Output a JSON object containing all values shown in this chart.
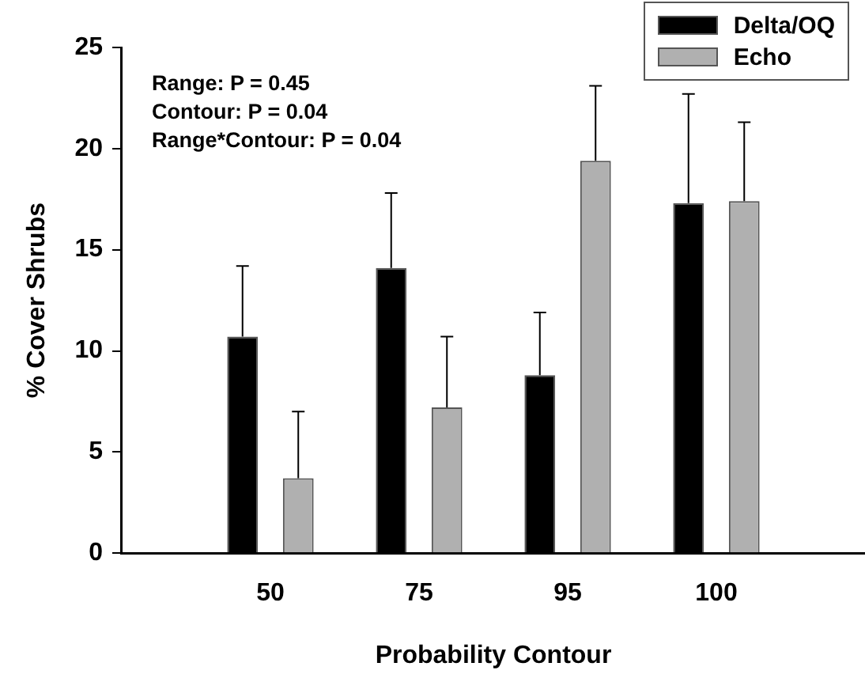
{
  "chart_data": {
    "type": "bar",
    "xlabel": "Probability Contour",
    "ylabel": "% Cover Shrubs",
    "categories": [
      "50",
      "75",
      "95",
      "100"
    ],
    "series": [
      {
        "name": "Delta/OQ",
        "color": "#000000",
        "values": [
          10.7,
          14.1,
          8.8,
          17.3
        ],
        "errors": [
          [
            10.7,
            14.2
          ],
          [
            14.1,
            17.8
          ],
          [
            8.8,
            11.9
          ],
          [
            17.3,
            22.7
          ]
        ]
      },
      {
        "name": "Echo",
        "color": "#b0b0b0",
        "values": [
          3.7,
          7.2,
          19.4,
          17.4
        ],
        "errors": [
          [
            3.7,
            7.0
          ],
          [
            7.2,
            10.7
          ],
          [
            19.4,
            23.1
          ],
          [
            17.4,
            21.3
          ]
        ]
      }
    ],
    "ylim": [
      0,
      25
    ],
    "yticks": [
      0,
      5,
      10,
      15,
      20,
      25
    ],
    "grid": false,
    "legend": "top right",
    "annotations": [
      "Range: P = 0.45",
      "Contour: P = 0.04",
      "Range*Contour: P = 0.04"
    ]
  }
}
